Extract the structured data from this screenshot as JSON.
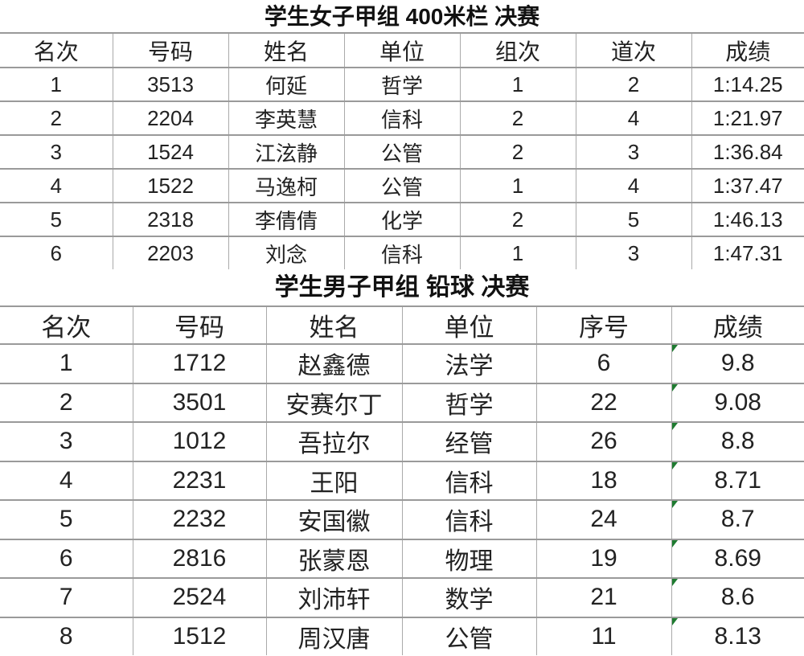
{
  "table1": {
    "title": "学生女子甲组 400米栏 决赛",
    "headers": [
      "名次",
      "号码",
      "姓名",
      "单位",
      "组次",
      "道次",
      "成绩"
    ],
    "rows": [
      [
        "1",
        "3513",
        "何延",
        "哲学",
        "1",
        "2",
        "1:14.25"
      ],
      [
        "2",
        "2204",
        "李英慧",
        "信科",
        "2",
        "4",
        "1:21.97"
      ],
      [
        "3",
        "1524",
        "江泫静",
        "公管",
        "2",
        "3",
        "1:36.84"
      ],
      [
        "4",
        "1522",
        "马逸柯",
        "公管",
        "1",
        "4",
        "1:37.47"
      ],
      [
        "5",
        "2318",
        "李倩倩",
        "化学",
        "2",
        "5",
        "1:46.13"
      ],
      [
        "6",
        "2203",
        "刘念",
        "信科",
        "1",
        "3",
        "1:47.31"
      ]
    ]
  },
  "table2": {
    "title": "学生男子甲组 铅球 决赛",
    "headers": [
      "名次",
      "号码",
      "姓名",
      "单位",
      "序号",
      "成绩"
    ],
    "rows": [
      [
        "1",
        "1712",
        "赵鑫德",
        "法学",
        "6",
        "9.8"
      ],
      [
        "2",
        "3501",
        "安赛尔丁",
        "哲学",
        "22",
        "9.08"
      ],
      [
        "3",
        "1012",
        "吾拉尔",
        "经管",
        "26",
        "8.8"
      ],
      [
        "4",
        "2231",
        "王阳",
        "信科",
        "18",
        "8.71"
      ],
      [
        "5",
        "2232",
        "安国徽",
        "信科",
        "24",
        "8.7"
      ],
      [
        "6",
        "2816",
        "张蒙恩",
        "物理",
        "19",
        "8.69"
      ],
      [
        "7",
        "2524",
        "刘沛轩",
        "数学",
        "21",
        "8.6"
      ],
      [
        "8",
        "1512",
        "周汉唐",
        "公管",
        "11",
        "8.13"
      ]
    ],
    "error_flag_color": "#1e7b30"
  }
}
